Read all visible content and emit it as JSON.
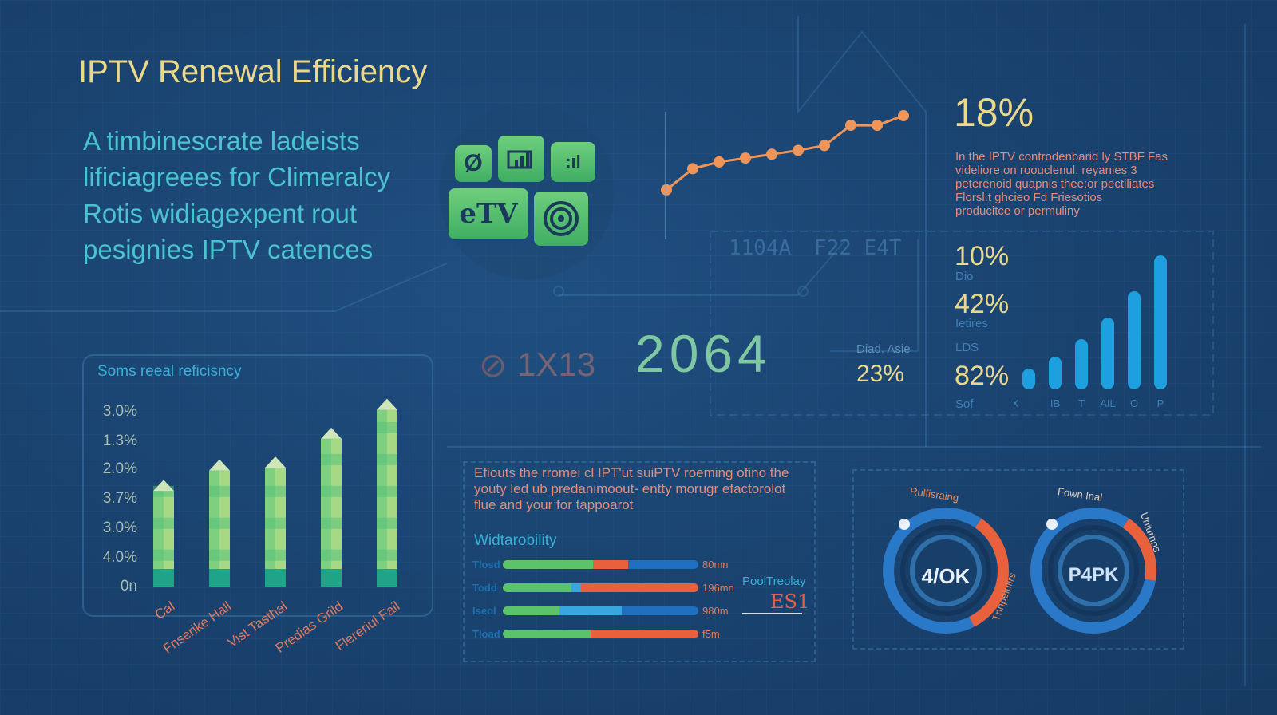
{
  "title": "IPTV Renewal Efficiency",
  "subtitle_lines": [
    "A timbinescrate ladeists",
    "lificiagreees for Climeralcy",
    "Rotis widiagexpent rout",
    "pesignies IPTV catences"
  ],
  "icon_tiles": {
    "tv_label": "eTV"
  },
  "line_chart": {
    "type": "line",
    "color": "#f0955a",
    "values": [
      1,
      3.2,
      3.9,
      4.3,
      4.7,
      5.1,
      5.6,
      7.7,
      7.7,
      8.7
    ]
  },
  "headline_stat": "18%",
  "headline_paragraph": [
    "In the IPTV controdenbarid ly STBF Fas",
    "videliore on roouclenul. reyanies 3",
    "peterenoid quapnis thee:or pectiliates",
    "Florsl.t ghcieo Fd Friesotios",
    "producitce or permuliny"
  ],
  "center_codes": {
    "code_a": "1X13",
    "code_b": "2064",
    "faint_a": "1104A",
    "faint_b": "F22 E4T"
  },
  "mid_stat": {
    "label": "Diad. Asie",
    "value": "23%"
  },
  "side_stats": [
    {
      "value": "10%",
      "label": "Dio"
    },
    {
      "value": "42%",
      "label": "Ietires"
    },
    {
      "value": "82%",
      "label_above": "LDS",
      "label": "Sof"
    }
  ],
  "chart_data": [
    {
      "type": "bar",
      "title": "Soms reeal reficisncy",
      "categories": [
        "Cal",
        "Fnserike Hall",
        "Vist Tasthal",
        "Predias Grild",
        "Flereriul Fail"
      ],
      "y_tick_labels": [
        "3.0%",
        "1.3%",
        "2.0%",
        "3.7%",
        "3.0%",
        "4.0%",
        "0n"
      ],
      "values_in_tick_steps": [
        3.3,
        4.0,
        4.1,
        5.1,
        6.1
      ],
      "colors": {
        "base": "#1fa487",
        "body": "#7fcf80",
        "top": "#cfe6b8"
      }
    },
    {
      "type": "bar",
      "categories": [
        "X",
        "IB",
        "T",
        "AIL",
        "O",
        "P"
      ],
      "values": [
        26,
        41,
        63,
        90,
        123,
        168
      ],
      "color": "#1e9fe0"
    },
    {
      "type": "bar",
      "orientation": "horizontal-stacked",
      "title": "Widtarobility",
      "rows": [
        {
          "label": "Tlosd",
          "value_label": "80mn",
          "segments": [
            {
              "color": "#5bc36a",
              "frac": 0.46
            },
            {
              "color": "#e8603c",
              "frac": 0.18
            },
            {
              "color": "#1e6fc0",
              "frac": 0.36
            }
          ]
        },
        {
          "label": "Todd",
          "value_label": "196mn",
          "segments": [
            {
              "color": "#5bc36a",
              "frac": 0.35
            },
            {
              "color": "#3aa6e0",
              "frac": 0.05
            },
            {
              "color": "#e8603c",
              "frac": 0.6
            }
          ]
        },
        {
          "label": "Iseol",
          "value_label": "980m",
          "segments": [
            {
              "color": "#5bc36a",
              "frac": 0.29
            },
            {
              "color": "#3aa6e0",
              "frac": 0.32
            },
            {
              "color": "#1e6fc0",
              "frac": 0.39
            }
          ]
        },
        {
          "label": "Tload",
          "value_label": "f5m",
          "segments": [
            {
              "color": "#5bc36a",
              "frac": 0.45
            },
            {
              "color": "#e8603c",
              "frac": 0.55
            }
          ]
        }
      ]
    }
  ],
  "efficiency_paragraph": [
    "Efiouts the rromei cl IPT'ut suiPTV roeming ofino the",
    "youty led ub predanimoout- entty morugr efactorolot",
    "flue and your for tappoarot"
  ],
  "pool": {
    "label": "PoolTreolay",
    "value": "ES1"
  },
  "gauges": [
    {
      "center": "4/OK",
      "arc_label": "Rulfisraing",
      "arc_label2": "Tnnpeiuiirs",
      "fill": 0.55,
      "colors": [
        "#2f8ee0",
        "#e8603c"
      ]
    },
    {
      "center": "P4PK",
      "arc_label": "Fown Inal",
      "arc_label2": "Uniurnns",
      "fill": 0.3,
      "colors": [
        "#2f8ee0",
        "#e8603c"
      ]
    }
  ]
}
